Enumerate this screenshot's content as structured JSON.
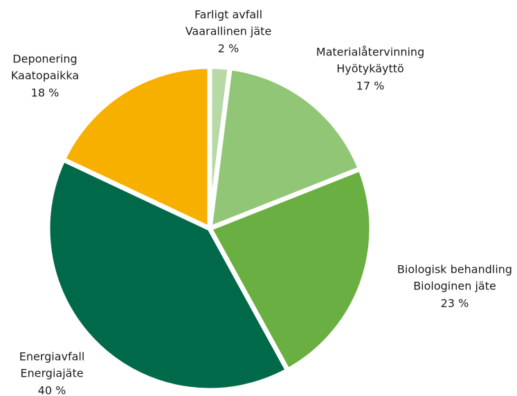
{
  "chart_data": {
    "type": "pie",
    "categories": [
      "Farligt avfall",
      "Materialåtervinning",
      "Biologisk behandling",
      "Energiavfall",
      "Deponering"
    ],
    "categories_fi": [
      "Vaarallinen jäte",
      "Hyötykäyttö",
      "Biologinen jäte",
      "Energiajäte",
      "Kaatopaikka"
    ],
    "values": [
      2,
      17,
      23,
      40,
      18
    ],
    "value_labels": [
      "2 %",
      "17 %",
      "23 %",
      "40 %",
      "18 %"
    ],
    "colors": [
      "#b7d9a6",
      "#92c677",
      "#6aaf41",
      "#00694a",
      "#f7b000"
    ]
  }
}
